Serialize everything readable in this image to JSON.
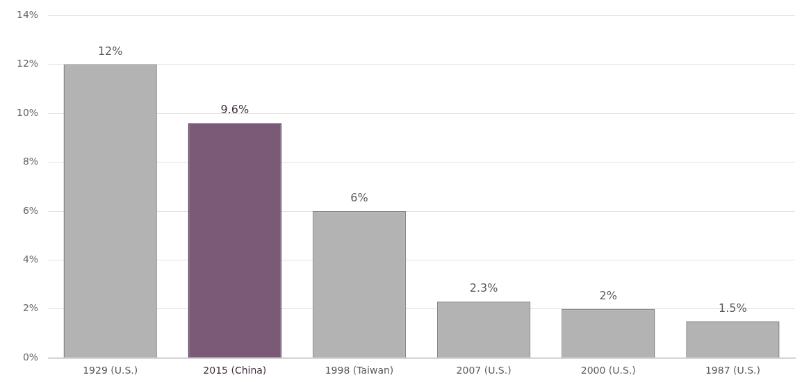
{
  "chart_data": {
    "type": "bar",
    "categories": [
      "1929 (U.S.)",
      "2015 (China)",
      "1998 (Taiwan)",
      "2007 (U.S.)",
      "2000 (U.S.)",
      "1987 (U.S.)"
    ],
    "values": [
      12,
      9.6,
      6,
      2.3,
      2,
      1.5
    ],
    "value_labels": [
      "12%",
      "9.6%",
      "6%",
      "2.3%",
      "2%",
      "1.5%"
    ],
    "colors": [
      "#b3b3b3",
      "#7b5a78",
      "#b3b3b3",
      "#b3b3b3",
      "#b3b3b3",
      "#b3b3b3"
    ],
    "ylim": [
      0,
      14
    ],
    "yticks": [
      {
        "value": 0,
        "label": "0%"
      },
      {
        "value": 2,
        "label": "2%"
      },
      {
        "value": 4,
        "label": "4%"
      },
      {
        "value": 6,
        "label": "6%"
      },
      {
        "value": 8,
        "label": "8%"
      },
      {
        "value": 10,
        "label": "10%"
      },
      {
        "value": 12,
        "label": "12%"
      },
      {
        "value": 14,
        "label": "14%"
      }
    ],
    "grid": "y",
    "legend": false
  }
}
